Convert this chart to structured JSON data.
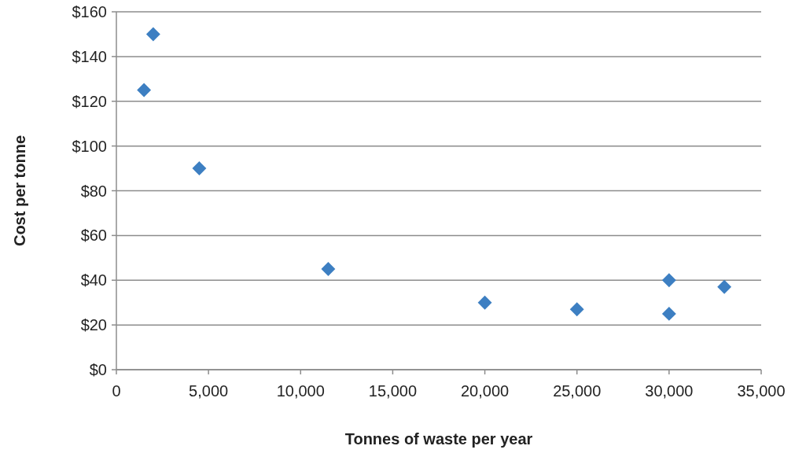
{
  "chart_data": {
    "type": "scatter",
    "xlabel": "Tonnes of waste per year",
    "ylabel": "Cost per tonne",
    "x": [
      1500,
      2000,
      4500,
      11500,
      20000,
      25000,
      30000,
      30000,
      33000
    ],
    "values": [
      125,
      150,
      90,
      45,
      30,
      27,
      40,
      25,
      37
    ],
    "color": "#3d7fc2",
    "marker": "diamond",
    "grid": "y",
    "xlim": [
      0,
      35000
    ],
    "ylim": [
      0,
      160
    ],
    "xticks": [
      0,
      {
        "value": 5000,
        "label": "5,000"
      },
      {
        "value": 10000,
        "label": "10,000"
      },
      {
        "value": 15000,
        "label": "15,000"
      },
      {
        "value": 20000,
        "label": "20,000"
      },
      {
        "value": 25000,
        "label": "25,000"
      },
      {
        "value": 30000,
        "label": "30,000"
      },
      {
        "value": 35000,
        "label": "35,000"
      }
    ],
    "yticks": [
      {
        "value": 0,
        "label": "$0"
      },
      {
        "value": 20,
        "label": "$20"
      },
      {
        "value": 40,
        "label": "$40"
      },
      {
        "value": 60,
        "label": "$60"
      },
      {
        "value": 80,
        "label": "$80"
      },
      {
        "value": 100,
        "label": "$100"
      },
      {
        "value": 120,
        "label": "$120"
      },
      {
        "value": 140,
        "label": "$140"
      },
      {
        "value": 160,
        "label": "$160"
      }
    ]
  }
}
